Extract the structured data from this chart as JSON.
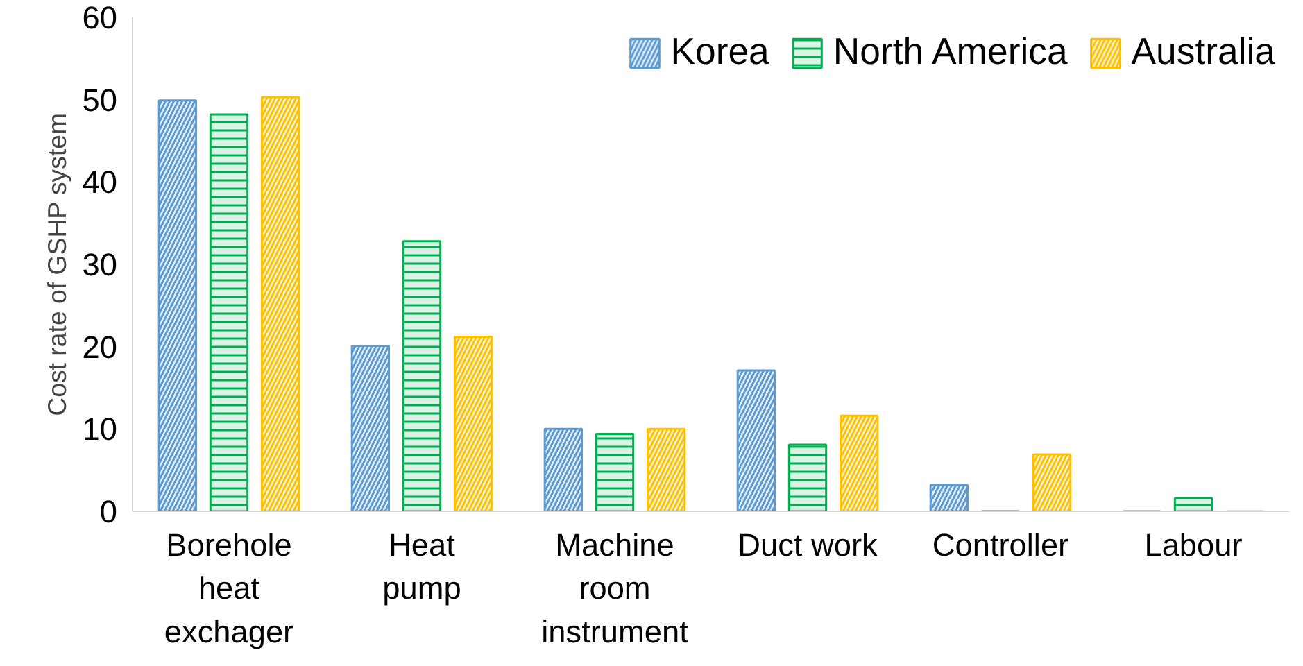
{
  "chart_data": {
    "type": "bar",
    "ylabel": "Cost rate of GSHP system",
    "categories": [
      "Borehole\nheat\nexchager",
      "Heat\npump",
      "Machine\nroom\ninstrument",
      "Duct work",
      "Controller",
      "Labour"
    ],
    "series": [
      {
        "name": "Korea",
        "color": "#5b9bd5",
        "values": [
          49.9,
          20.1,
          10,
          17.1,
          3.2,
          0
        ]
      },
      {
        "name": "North America",
        "color": "#00b050",
        "values": [
          48.2,
          32.8,
          9.4,
          8.1,
          0,
          1.6
        ]
      },
      {
        "name": "Australia",
        "color": "#ffc000",
        "values": [
          50.3,
          21.2,
          10,
          11.6,
          6.9,
          0
        ]
      }
    ],
    "ylim": [
      0,
      60
    ],
    "yticks": [
      0,
      10,
      20,
      30,
      40,
      50,
      60
    ],
    "grid": false,
    "legend": "top right"
  }
}
